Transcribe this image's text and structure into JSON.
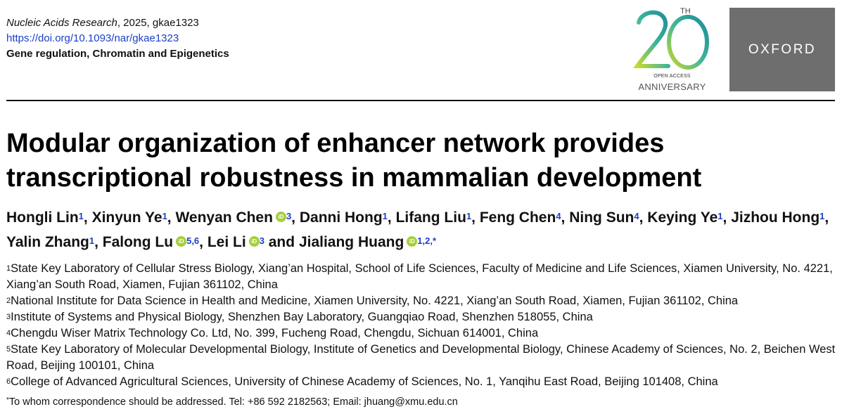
{
  "header": {
    "journal": "Nucleic Acids Research",
    "year_id": ", 2025, gkae1323",
    "doi": "https://doi.org/10.1093/nar/gkae1323",
    "section": "Gene regulation, Chromatin and Epigenetics"
  },
  "anniversary": {
    "number": "20",
    "suffix": "TH",
    "open_access": "OPEN ACCESS",
    "label": "ANNIVERSARY"
  },
  "publisher": "OXFORD",
  "title": "Modular organization of enhancer network provides transcriptional robustness in mammalian development",
  "authors": [
    {
      "name": "Hongli Lin",
      "sup": "1",
      "orcid": false
    },
    {
      "name": "Xinyun Ye",
      "sup": "1",
      "orcid": false
    },
    {
      "name": "Wenyan Chen",
      "sup": "3",
      "orcid": true
    },
    {
      "name": "Danni Hong",
      "sup": "1",
      "orcid": false
    },
    {
      "name": "Lifang Liu",
      "sup": "1",
      "orcid": false
    },
    {
      "name": "Feng Chen",
      "sup": "4",
      "orcid": false
    },
    {
      "name": "Ning Sun",
      "sup": "4",
      "orcid": false
    },
    {
      "name": "Keying Ye",
      "sup": "1",
      "orcid": false
    },
    {
      "name": "Jizhou Hong",
      "sup": "1",
      "orcid": false
    },
    {
      "name": "Yalin Zhang",
      "sup": "1",
      "orcid": false
    },
    {
      "name": "Falong Lu",
      "sup": "5,6",
      "orcid": true
    },
    {
      "name": "Lei Li",
      "sup": "3",
      "orcid": true
    },
    {
      "name": "Jialiang Huang",
      "sup": "1,2,*",
      "orcid": true
    }
  ],
  "author_and": "and",
  "orcid_icon": "orcid-icon",
  "affiliations": [
    {
      "num": "1",
      "text": "State Key Laboratory of Cellular Stress Biology, Xiang’an Hospital, School of Life Sciences, Faculty of Medicine and Life Sciences, Xiamen University, No. 4221, Xiang’an South Road, Xiamen, Fujian 361102, China"
    },
    {
      "num": "2",
      "text": "National Institute for Data Science in Health and Medicine, Xiamen University, No. 4221, Xiang’an South Road, Xiamen, Fujian 361102, China"
    },
    {
      "num": "3",
      "text": "Institute of Systems and Physical Biology, Shenzhen Bay Laboratory, Guangqiao Road, Shenzhen 518055, China"
    },
    {
      "num": "4",
      "text": "Chengdu Wiser Matrix Technology Co. Ltd, No. 399, Fucheng Road, Chengdu, Sichuan 614001, China"
    },
    {
      "num": "5",
      "text": "State Key Laboratory of Molecular Developmental Biology, Institute of Genetics and Developmental Biology, Chinese Academy of Sciences, No. 2, Beichen West Road, Beijing 100101, China"
    },
    {
      "num": "6",
      "text": "College of Advanced Agricultural Sciences, University of Chinese Academy of Sciences, No. 1, Yanqihu East Road, Beijing 101408, China"
    }
  ],
  "correspondence": {
    "mark": "*",
    "text": "To whom correspondence should be addressed. Tel: +86 592 2182563; Email: jhuang@xmu.edu.cn"
  },
  "colors": {
    "link_blue": "#1a3fc7",
    "orcid_green": "#a6ce39",
    "oxford_gray": "#6e6e6e"
  }
}
